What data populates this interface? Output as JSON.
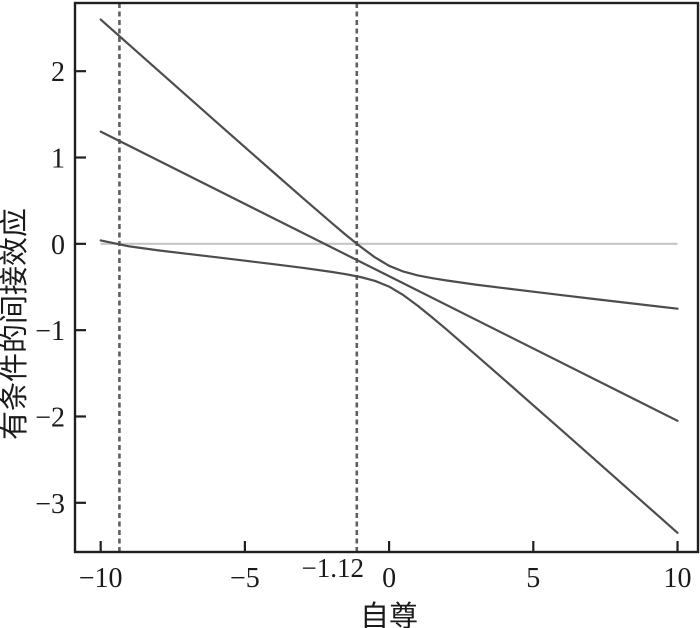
{
  "figure": {
    "background": "#ffffff"
  },
  "chart_data": {
    "type": "line",
    "title": "",
    "xlabel": "自尊",
    "ylabel": "有条件的间接效应",
    "xlim": [
      -10.89,
      10.71
    ],
    "ylim": [
      -3.57,
      2.79
    ],
    "grid": false,
    "legend": null,
    "x_ticks": {
      "values": [
        -10,
        -5,
        0,
        5,
        10
      ],
      "labels": [
        "−10",
        "−5",
        "0",
        "5",
        "10"
      ]
    },
    "y_ticks": {
      "values": [
        2,
        1,
        0,
        -1,
        -2,
        -3
      ],
      "labels": [
        "2",
        "1",
        "0",
        "−1",
        "−2",
        "−3"
      ]
    },
    "jn_annotation": {
      "text": "−1.12",
      "x": -1.12
    },
    "reference": {
      "zero_line": {
        "y": 0,
        "x_start": -10,
        "x_end": 10
      },
      "vertical_dashed_x": [
        -9.35,
        -1.12
      ]
    },
    "series": [
      {
        "name": "upper-confidence-bound",
        "x": [
          -10,
          -9,
          -8,
          -7,
          -6,
          -5,
          -4,
          -3,
          -2,
          -1.5,
          -1,
          -0.5,
          0,
          0.5,
          1,
          1.5,
          2,
          3,
          4,
          5,
          6,
          7,
          8,
          9,
          10
        ],
        "y": [
          2.598,
          2.302,
          2.006,
          1.71,
          1.415,
          1.12,
          0.826,
          0.533,
          0.245,
          0.104,
          -0.031,
          -0.155,
          -0.255,
          -0.322,
          -0.366,
          -0.398,
          -0.425,
          -0.472,
          -0.514,
          -0.555,
          -0.595,
          -0.635,
          -0.674,
          -0.713,
          -0.752
        ]
      },
      {
        "name": "point-estimate",
        "x": [
          -10,
          10
        ],
        "y": [
          1.3,
          -2.05
        ]
      },
      {
        "name": "lower-confidence-bound",
        "x": [
          -10,
          -9,
          -8,
          -7,
          -6,
          -5,
          -4,
          -3,
          -2,
          -1.5,
          -1,
          -0.5,
          0,
          0.5,
          1,
          1.5,
          2,
          3,
          4,
          5,
          6,
          7,
          8,
          9,
          10
        ],
        "y": [
          0.04,
          -0.03,
          -0.076,
          -0.115,
          -0.155,
          -0.195,
          -0.236,
          -0.278,
          -0.325,
          -0.352,
          -0.384,
          -0.428,
          -0.495,
          -0.595,
          -0.719,
          -0.854,
          -0.995,
          -1.284,
          -1.576,
          -1.87,
          -2.165,
          -2.46,
          -2.756,
          -3.052,
          -3.348
        ]
      }
    ],
    "colors": {
      "line": "#4d4d4d",
      "zero_line": "#c6c6c6",
      "dashed_line": "#5f5f5f",
      "axis": "#1f1f1f",
      "text": "#1a1a1a",
      "background": "#ffffff"
    }
  }
}
